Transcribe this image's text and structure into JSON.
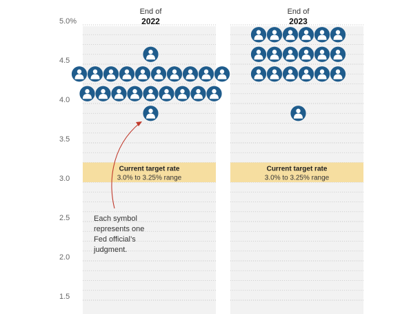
{
  "chart_data": {
    "type": "scatter",
    "y_tick_labels": [
      "5.0%",
      "4.5",
      "4.0",
      "3.5",
      "3.0",
      "2.5",
      "2.0",
      "1.5"
    ],
    "y_ticks": [
      5.0,
      4.5,
      4.0,
      3.5,
      3.0,
      2.5,
      2.0,
      1.5
    ],
    "ylim": [
      1.4,
      5.0
    ],
    "grid": true,
    "columns": [
      {
        "header_prefix": "End of",
        "year": "2022",
        "dots": [
          {
            "rate": 4.625,
            "count": 1
          },
          {
            "rate": 4.375,
            "count": 10
          },
          {
            "rate": 4.125,
            "count": 9
          },
          {
            "rate": 3.875,
            "count": 1
          }
        ]
      },
      {
        "header_prefix": "End of",
        "year": "2023",
        "dots": [
          {
            "rate": 4.875,
            "count": 6
          },
          {
            "rate": 4.625,
            "count": 6
          },
          {
            "rate": 4.375,
            "count": 6
          },
          {
            "rate": 3.875,
            "count": 1
          }
        ]
      }
    ],
    "target_band": {
      "low": 3.0,
      "high": 3.25,
      "title": "Current target rate",
      "range_text": "3.0% to 3.25% range"
    },
    "annotation": {
      "lines": [
        "Each symbol",
        "represents one",
        "Fed official’s",
        "judgment."
      ]
    },
    "colors": {
      "dot_fill": "#1f5c8c",
      "band_fill": "#f6dea0",
      "grid": "#c8c8c8",
      "arrow": "#c0392b",
      "column_bg": "#f2f2f2"
    }
  }
}
